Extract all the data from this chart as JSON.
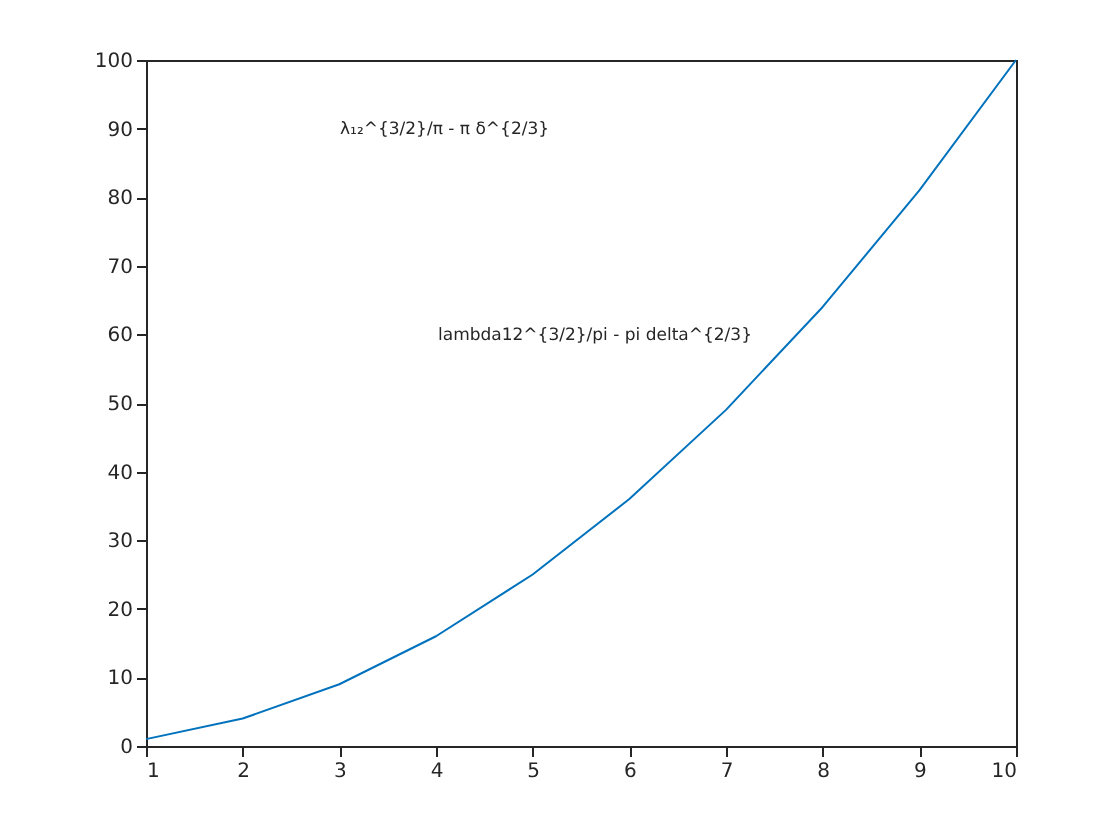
{
  "chart_data": {
    "type": "line",
    "x": [
      1,
      2,
      3,
      4,
      5,
      6,
      7,
      8,
      9,
      10
    ],
    "series": [
      {
        "color": "#0072bd",
        "values": [
          1,
          4,
          9,
          16,
          25,
          36,
          49,
          64,
          81,
          100
        ]
      }
    ],
    "xlim": [
      1,
      10
    ],
    "xticks": [
      1,
      2,
      3,
      4,
      5,
      6,
      7,
      8,
      9,
      10
    ],
    "ylim": [
      0,
      100
    ],
    "yticks": [
      0,
      10,
      20,
      30,
      40,
      50,
      60,
      70,
      80,
      90,
      100
    ],
    "grid": false,
    "marker": "none",
    "line_style": "solid",
    "annotations": [
      "λ₁₂^{3/2}/π - π δ^{2/3}",
      "lambda12^{3/2}/pi - pi delta^{2/3}"
    ]
  }
}
